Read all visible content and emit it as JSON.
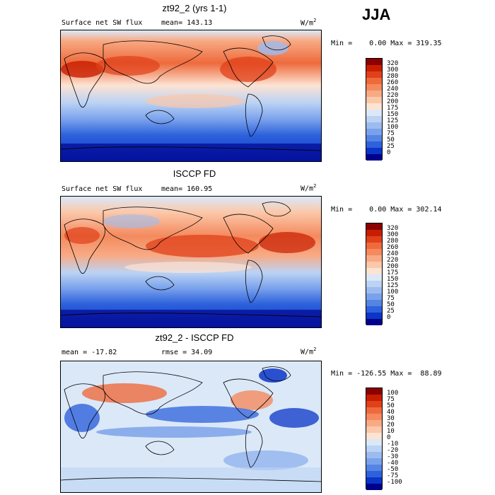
{
  "season": "JJA",
  "panels": [
    {
      "title": "zt92_2 (yrs 1-1)",
      "left_label": "Surface net SW flux",
      "mid_label": "mean= 143.13",
      "units_label": "W/m",
      "units_sup": "2",
      "minmax": "Min =    0.00 Max = 319.35",
      "colorbar_labels": [
        "320",
        "300",
        "280",
        "260",
        "240",
        "220",
        "200",
        "175",
        "150",
        "125",
        "100",
        "75",
        "50",
        "25",
        "0"
      ],
      "colorbar_colors": [
        "#8b0000",
        "#c81e00",
        "#e0401a",
        "#ee6a3c",
        "#f48a5e",
        "#f8aa84",
        "#fbc8aa",
        "#fde3d2",
        "#dbe8f8",
        "#bcd3f4",
        "#9cbcf0",
        "#7aa2ec",
        "#5585e4",
        "#2e62dc",
        "#0a35c8",
        "#00008b"
      ]
    },
    {
      "title": "ISCCP FD",
      "left_label": "Surface net SW flux",
      "mid_label": "mean= 160.95",
      "units_label": "W/m",
      "units_sup": "2",
      "minmax": "Min =    0.00 Max = 302.14",
      "colorbar_labels": [
        "320",
        "300",
        "280",
        "260",
        "240",
        "220",
        "200",
        "175",
        "150",
        "125",
        "100",
        "75",
        "50",
        "25",
        "0"
      ],
      "colorbar_colors": [
        "#8b0000",
        "#c81e00",
        "#e0401a",
        "#ee6a3c",
        "#f48a5e",
        "#f8aa84",
        "#fbc8aa",
        "#fde3d2",
        "#dbe8f8",
        "#bcd3f4",
        "#9cbcf0",
        "#7aa2ec",
        "#5585e4",
        "#2e62dc",
        "#0a35c8",
        "#00008b"
      ]
    },
    {
      "title": "zt92_2 - ISCCP FD",
      "left_label": "mean = -17.82",
      "mid_label": "rmse =  34.09",
      "units_label": "W/m",
      "units_sup": "2",
      "minmax": "Min = -126.55 Max =  88.89",
      "colorbar_labels": [
        "100",
        "75",
        "50",
        "40",
        "30",
        "20",
        "10",
        "0",
        "-10",
        "-20",
        "-30",
        "-40",
        "-50",
        "-75",
        "-100"
      ],
      "colorbar_colors": [
        "#8b0000",
        "#c81e00",
        "#e0401a",
        "#ee6a3c",
        "#f48a5e",
        "#f8aa84",
        "#fbc8aa",
        "#fde3d2",
        "#dbe8f8",
        "#bcd3f4",
        "#9cbcf0",
        "#7aa2ec",
        "#5585e4",
        "#2e62dc",
        "#0a35c8",
        "#00008b"
      ]
    }
  ],
  "chart_data": [
    {
      "type": "heatmap",
      "title": "zt92_2 (yrs 1-1)",
      "variable": "Surface net SW flux",
      "units": "W/m2",
      "season": "JJA",
      "mean": 143.13,
      "min": 0.0,
      "max": 319.35,
      "colorbar_levels": [
        0,
        25,
        50,
        75,
        100,
        125,
        150,
        175,
        200,
        220,
        240,
        260,
        280,
        300,
        320
      ]
    },
    {
      "type": "heatmap",
      "title": "ISCCP FD",
      "variable": "Surface net SW flux",
      "units": "W/m2",
      "season": "JJA",
      "mean": 160.95,
      "min": 0.0,
      "max": 302.14,
      "colorbar_levels": [
        0,
        25,
        50,
        75,
        100,
        125,
        150,
        175,
        200,
        220,
        240,
        260,
        280,
        300,
        320
      ]
    },
    {
      "type": "heatmap",
      "title": "zt92_2 - ISCCP FD",
      "units": "W/m2",
      "season": "JJA",
      "mean": -17.82,
      "rmse": 34.09,
      "min": -126.55,
      "max": 88.89,
      "colorbar_levels": [
        -100,
        -75,
        -50,
        -40,
        -30,
        -20,
        -10,
        0,
        10,
        20,
        30,
        40,
        50,
        75,
        100
      ]
    }
  ]
}
